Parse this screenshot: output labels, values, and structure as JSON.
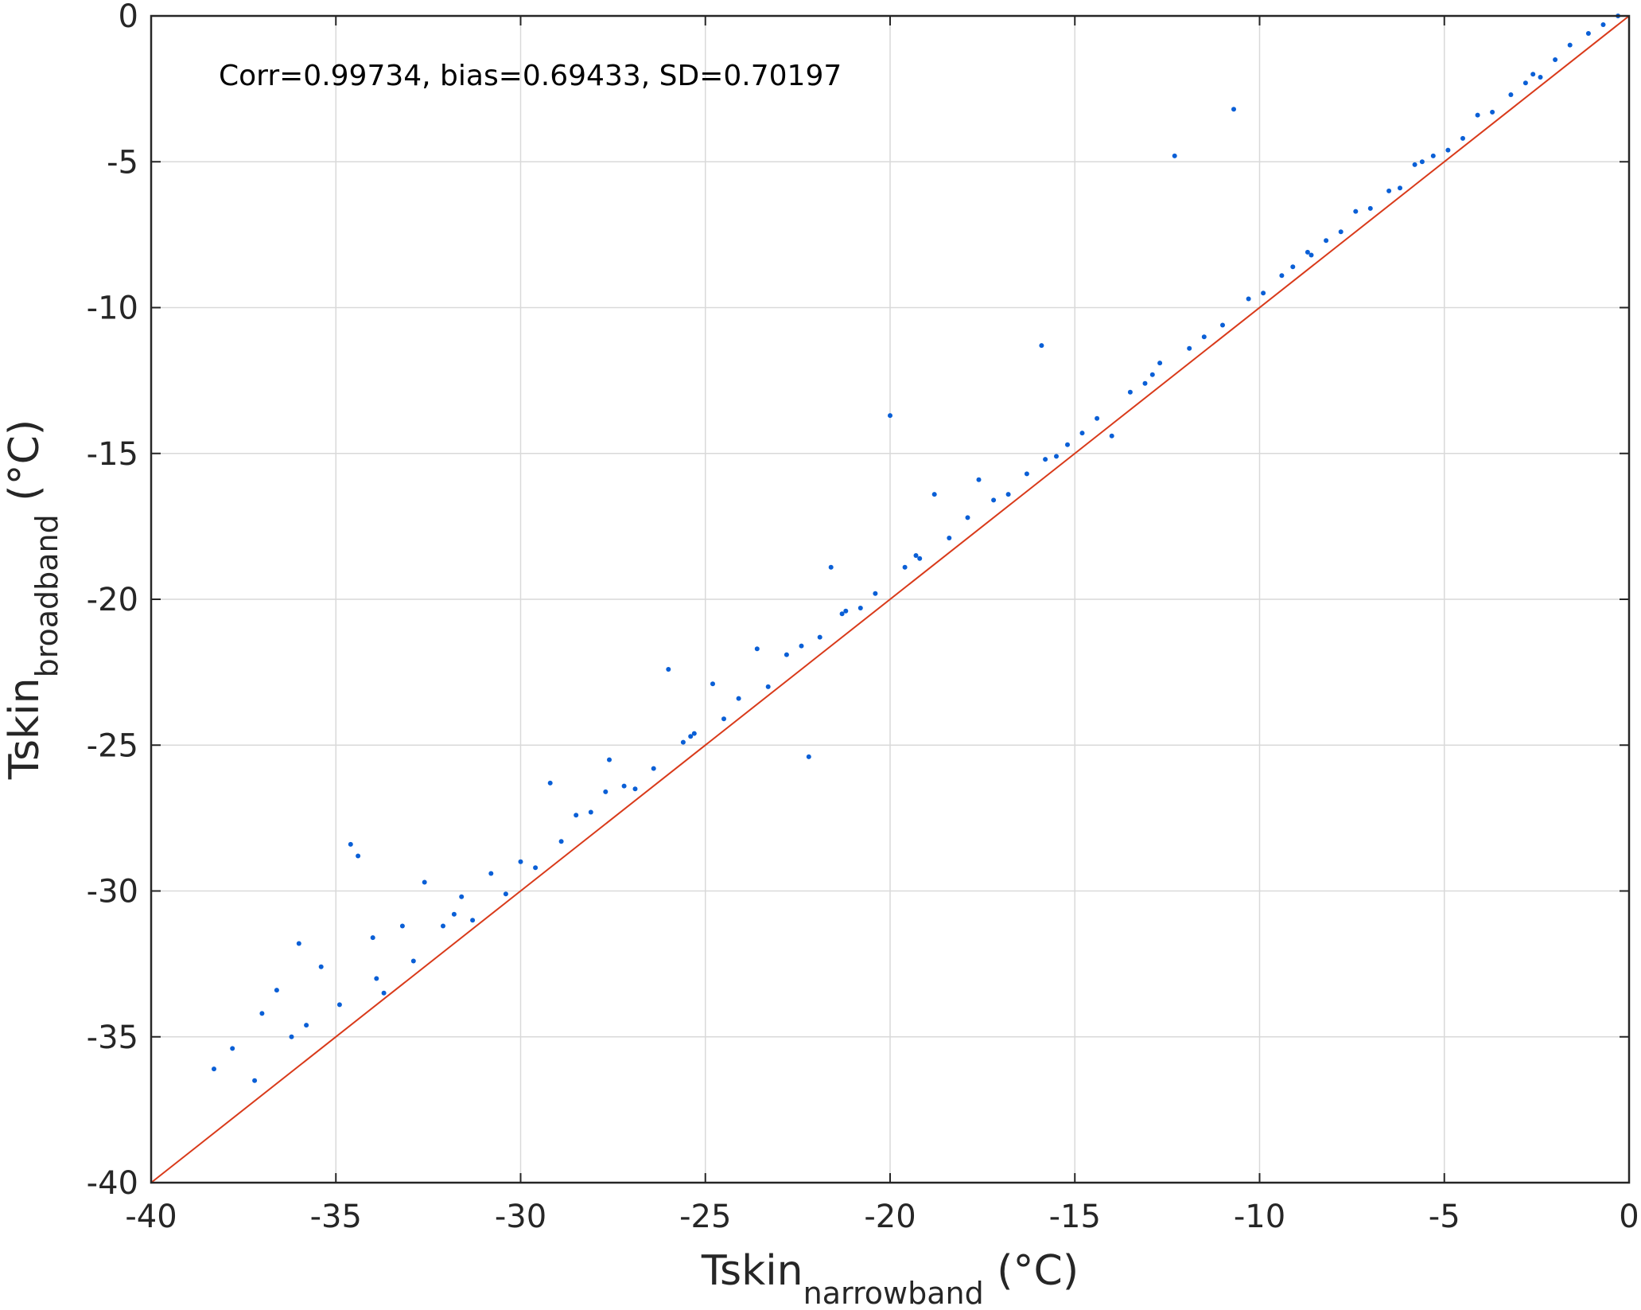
{
  "chart_data": {
    "type": "scatter",
    "annotation": "Corr=0.99734, bias=0.69433, SD=0.70197",
    "xlabel": {
      "main": "Tskin",
      "sub": "narrowband",
      "unit": " (°C)"
    },
    "ylabel": {
      "main": "Tskin",
      "sub": "broadband",
      "unit": " (°C)"
    },
    "xlim": [
      -40,
      0
    ],
    "ylim": [
      -40,
      0
    ],
    "xticks": [
      -40,
      -35,
      -30,
      -25,
      -20,
      -15,
      -10,
      -5,
      0
    ],
    "yticks": [
      -40,
      -35,
      -30,
      -25,
      -20,
      -15,
      -10,
      -5,
      0
    ],
    "xtick_labels": [
      "-40",
      "-35",
      "-30",
      "-25",
      "-20",
      "-15",
      "-10",
      "-5",
      "0"
    ],
    "ytick_labels": [
      "-40",
      "-35",
      "-30",
      "-25",
      "-20",
      "-15",
      "-10",
      "-5",
      "0"
    ],
    "grid": true,
    "colors": {
      "points": "#0a5fd6",
      "reference_line": "#d93a1a",
      "grid": "#d9d9d9",
      "axis": "#262626"
    },
    "reference_line": {
      "x": [
        -40,
        0
      ],
      "y": [
        -40,
        0
      ]
    },
    "series": [
      {
        "points": [
          [
            -38.3,
            -36.1
          ],
          [
            -37.8,
            -35.4
          ],
          [
            -37.2,
            -36.5
          ],
          [
            -37.0,
            -34.2
          ],
          [
            -36.6,
            -33.4
          ],
          [
            -36.2,
            -35.0
          ],
          [
            -36.0,
            -31.8
          ],
          [
            -35.8,
            -34.6
          ],
          [
            -35.4,
            -32.6
          ],
          [
            -34.9,
            -33.9
          ],
          [
            -34.6,
            -28.4
          ],
          [
            -34.4,
            -28.8
          ],
          [
            -34.0,
            -31.6
          ],
          [
            -33.7,
            -33.5
          ],
          [
            -33.2,
            -31.2
          ],
          [
            -32.9,
            -32.4
          ],
          [
            -32.6,
            -29.7
          ],
          [
            -32.1,
            -31.2
          ],
          [
            -31.6,
            -30.2
          ],
          [
            -31.3,
            -31.0
          ],
          [
            -30.8,
            -29.4
          ],
          [
            -30.4,
            -30.1
          ],
          [
            -30.0,
            -29.0
          ],
          [
            -29.6,
            -29.2
          ],
          [
            -29.2,
            -26.3
          ],
          [
            -28.9,
            -28.3
          ],
          [
            -28.5,
            -27.4
          ],
          [
            -28.1,
            -27.3
          ],
          [
            -27.6,
            -25.5
          ],
          [
            -27.2,
            -26.4
          ],
          [
            -26.9,
            -26.5
          ],
          [
            -26.4,
            -25.8
          ],
          [
            -26.0,
            -22.4
          ],
          [
            -25.6,
            -24.9
          ],
          [
            -25.3,
            -24.6
          ],
          [
            -24.8,
            -22.9
          ],
          [
            -24.5,
            -24.1
          ],
          [
            -24.1,
            -23.4
          ],
          [
            -23.6,
            -21.7
          ],
          [
            -23.3,
            -23.0
          ],
          [
            -22.8,
            -21.9
          ],
          [
            -22.4,
            -21.6
          ],
          [
            -22.2,
            -25.4
          ],
          [
            -21.9,
            -21.3
          ],
          [
            -21.6,
            -18.9
          ],
          [
            -21.2,
            -20.4
          ],
          [
            -20.8,
            -20.3
          ],
          [
            -20.4,
            -19.8
          ],
          [
            -20.0,
            -13.7
          ],
          [
            -19.6,
            -18.9
          ],
          [
            -19.2,
            -18.6
          ],
          [
            -18.8,
            -16.4
          ],
          [
            -18.4,
            -17.9
          ],
          [
            -17.9,
            -17.2
          ],
          [
            -17.6,
            -15.9
          ],
          [
            -17.2,
            -16.6
          ],
          [
            -16.8,
            -16.4
          ],
          [
            -16.3,
            -15.7
          ],
          [
            -15.9,
            -11.3
          ],
          [
            -15.5,
            -15.1
          ],
          [
            -15.2,
            -14.7
          ],
          [
            -14.8,
            -14.3
          ],
          [
            -14.4,
            -13.8
          ],
          [
            -14.0,
            -14.4
          ],
          [
            -13.5,
            -12.9
          ],
          [
            -13.1,
            -12.6
          ],
          [
            -12.7,
            -11.9
          ],
          [
            -12.3,
            -4.8
          ],
          [
            -11.9,
            -11.4
          ],
          [
            -11.5,
            -11.0
          ],
          [
            -11.0,
            -10.6
          ],
          [
            -10.7,
            -3.2
          ],
          [
            -10.3,
            -9.7
          ],
          [
            -9.9,
            -9.5
          ],
          [
            -9.4,
            -8.9
          ],
          [
            -9.1,
            -8.6
          ],
          [
            -8.6,
            -8.2
          ],
          [
            -8.2,
            -7.7
          ],
          [
            -7.8,
            -7.4
          ],
          [
            -7.4,
            -6.7
          ],
          [
            -7.0,
            -6.6
          ],
          [
            -6.5,
            -6.0
          ],
          [
            -6.2,
            -5.9
          ],
          [
            -5.8,
            -5.1
          ],
          [
            -5.3,
            -4.8
          ],
          [
            -4.9,
            -4.6
          ],
          [
            -4.5,
            -4.2
          ],
          [
            -4.1,
            -3.4
          ],
          [
            -3.7,
            -3.3
          ],
          [
            -3.2,
            -2.7
          ],
          [
            -2.8,
            -2.3
          ],
          [
            -2.4,
            -2.1
          ],
          [
            -2.0,
            -1.5
          ],
          [
            -1.6,
            -1.0
          ],
          [
            -1.1,
            -0.6
          ],
          [
            -0.7,
            -0.3
          ],
          [
            -0.3,
            0.0
          ],
          [
            -33.9,
            -33.0
          ],
          [
            -31.8,
            -30.8
          ],
          [
            -27.7,
            -26.6
          ],
          [
            -25.4,
            -24.7
          ],
          [
            -21.3,
            -20.5
          ],
          [
            -19.3,
            -18.5
          ],
          [
            -15.8,
            -15.2
          ],
          [
            -12.9,
            -12.3
          ],
          [
            -8.7,
            -8.1
          ],
          [
            -5.6,
            -5.0
          ],
          [
            -2.6,
            -2.0
          ]
        ]
      }
    ]
  }
}
